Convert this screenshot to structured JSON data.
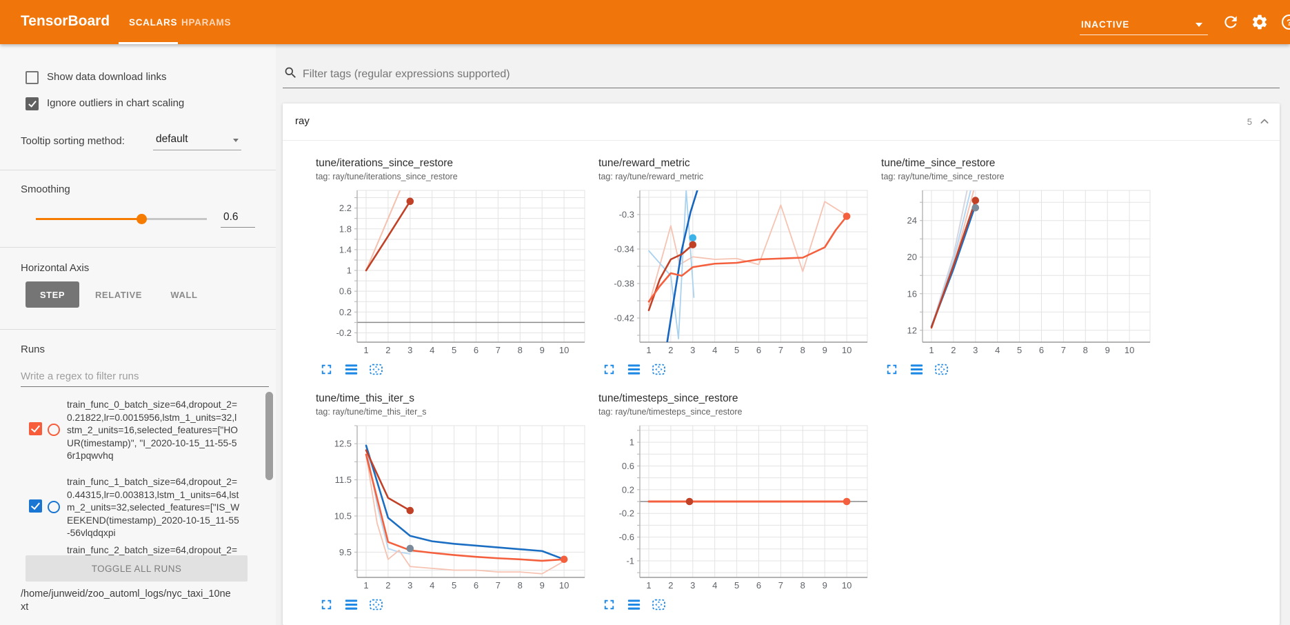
{
  "topbar": {
    "logo": "TensorBoard",
    "tabs": [
      {
        "label": "SCALARS",
        "active": true
      },
      {
        "label": "HPARAMS",
        "active": false
      }
    ],
    "status": "INACTIVE",
    "accent_color": "#f0750a"
  },
  "sidebar": {
    "checkboxes": [
      {
        "label": "Show data download links",
        "checked": false
      },
      {
        "label": "Ignore outliers in chart scaling",
        "checked": true
      }
    ],
    "tooltip_sorting": {
      "label": "Tooltip sorting method:",
      "value": "default"
    },
    "smoothing": {
      "label": "Smoothing",
      "value": "0.6"
    },
    "horizontal_axis": {
      "label": "Horizontal Axis",
      "options": [
        "STEP",
        "RELATIVE",
        "WALL"
      ],
      "selected": "STEP"
    },
    "runs": {
      "label": "Runs",
      "filter_placeholder": "Write a regex to filter runs",
      "items": [
        {
          "label": "train_func_0_batch_size=64,dropout_2=0.21822,lr=0.0015956,lstm_1_units=32,lstm_2_units=16,selected_features=[\"HOUR(timestamp)\", \"I_2020-10-15_11-55-56r1pqwvhq",
          "color": "#f75d3b",
          "checked": true
        },
        {
          "label": "train_func_1_batch_size=64,dropout_2=0.44315,lr=0.003813,lstm_1_units=64,lstm_2_units=32,selected_features=[\"IS_WEEKEND(timestamp)_2020-10-15_11-55-56vlqdqxpi",
          "color": "#1976d2",
          "checked": true
        },
        {
          "label": "train_func_2_batch_size=64,dropout_2="
        }
      ],
      "toggle_all_label": "TOGGLE ALL RUNS",
      "log_dir": "/home/junweid/zoo_automl_logs/nyc_taxi_10next"
    }
  },
  "main": {
    "filter_placeholder": "Filter tags (regular expressions supported)",
    "card": {
      "title": "ray",
      "count": "5"
    }
  },
  "chart_data": [
    {
      "type": "line",
      "title": "tune/iterations_since_restore",
      "tag": "tag: ray/tune/iterations_since_restore",
      "xlabel": "step",
      "xticks": [
        1,
        2,
        3,
        4,
        5,
        6,
        7,
        8,
        9,
        10
      ],
      "ylim": [
        -0.38,
        2.54
      ],
      "yticks": [
        2.2,
        1.8,
        1.4,
        1.0,
        0.6,
        0.2,
        -0.2
      ],
      "ytick_labels": [
        "2.2",
        "1.8",
        "1.4",
        "1",
        "0.6",
        "0.2",
        "-0.2"
      ],
      "zero_line": true,
      "series": [
        {
          "name": "train_func_0 raw",
          "color": "#f6c0ae",
          "width": 2,
          "points": [
            [
              1,
              1
            ],
            [
              2.6,
              2.6
            ]
          ]
        },
        {
          "name": "train_func_0 smoothed",
          "color": "#c14127",
          "width": 2.6,
          "points": [
            [
              1,
              1
            ],
            [
              2,
              1.66
            ],
            [
              3,
              2.33
            ]
          ]
        }
      ],
      "dots": [
        {
          "x": 3,
          "y": 2.33,
          "color": "#c14127"
        }
      ]
    },
    {
      "type": "line",
      "title": "tune/reward_metric",
      "tag": "tag: ray/tune/reward_metric",
      "xlabel": "step",
      "xticks": [
        1,
        2,
        3,
        4,
        5,
        6,
        7,
        8,
        9,
        10
      ],
      "ylim": [
        -0.448,
        -0.272
      ],
      "yticks": [
        -0.3,
        -0.34,
        -0.38,
        -0.42
      ],
      "ytick_labels": [
        "-0.3",
        "-0.34",
        "-0.38",
        "-0.42"
      ],
      "zero_line": false,
      "series": [
        {
          "name": "raw pink",
          "color": "#f6c3b2",
          "width": 1.8,
          "points": [
            [
              1,
              -0.405
            ],
            [
              2,
              -0.313
            ],
            [
              2.4,
              -0.358
            ],
            [
              3,
              -0.349
            ],
            [
              4,
              -0.352
            ],
            [
              5,
              -0.351
            ],
            [
              6,
              -0.358
            ],
            [
              7,
              -0.289
            ],
            [
              8,
              -0.366
            ],
            [
              9,
              -0.285
            ],
            [
              10,
              -0.301
            ]
          ]
        },
        {
          "name": "raw light blue",
          "color": "#a9d2ef",
          "width": 1.8,
          "points": [
            [
              1,
              -0.342
            ],
            [
              2,
              -0.371
            ],
            [
              2.35,
              -0.444
            ],
            [
              2.7,
              -0.272
            ],
            [
              3.05,
              -0.396
            ]
          ]
        },
        {
          "name": "smoothed blue",
          "color": "#1565c0",
          "width": 2.6,
          "points": [
            [
              1.75,
              -0.462
            ],
            [
              2.1,
              -0.405
            ],
            [
              2.5,
              -0.341
            ],
            [
              2.9,
              -0.297
            ],
            [
              3.4,
              -0.256
            ]
          ]
        },
        {
          "name": "smoothed dark red",
          "color": "#c14127",
          "width": 2.6,
          "points": [
            [
              1,
              -0.411
            ],
            [
              1.5,
              -0.375
            ],
            [
              2,
              -0.352
            ],
            [
              2.5,
              -0.346
            ],
            [
              3,
              -0.335
            ]
          ]
        },
        {
          "name": "smoothed orange",
          "color": "#f4603d",
          "width": 2.6,
          "points": [
            [
              1,
              -0.401
            ],
            [
              1.5,
              -0.383
            ],
            [
              2,
              -0.368
            ],
            [
              2.5,
              -0.371
            ],
            [
              3,
              -0.361
            ],
            [
              4,
              -0.357
            ],
            [
              5,
              -0.356
            ],
            [
              6,
              -0.352
            ],
            [
              7,
              -0.351
            ],
            [
              8,
              -0.35
            ],
            [
              9,
              -0.338
            ],
            [
              9.5,
              -0.318
            ],
            [
              10,
              -0.302
            ]
          ]
        }
      ],
      "dots": [
        {
          "x": 3,
          "y": -0.327,
          "color": "#3bb3e8"
        },
        {
          "x": 3,
          "y": -0.335,
          "color": "#c14127"
        },
        {
          "x": 10,
          "y": -0.302,
          "color": "#f4603d"
        }
      ]
    },
    {
      "type": "line",
      "title": "tune/time_since_restore",
      "tag": "tag: ray/tune/time_since_restore",
      "xlabel": "step",
      "xticks": [
        1,
        2,
        3,
        4,
        5,
        6,
        7,
        8,
        9,
        10
      ],
      "ylim": [
        10.7,
        27.3
      ],
      "yticks": [
        24,
        20,
        16,
        12
      ],
      "ytick_labels": [
        "24",
        "20",
        "16",
        "12"
      ],
      "zero_line": false,
      "series": [
        {
          "name": "raw gray",
          "color": "#d6d6e0",
          "width": 2,
          "points": [
            [
              1,
              12.35
            ],
            [
              2,
              20.2
            ],
            [
              2.62,
              27.3
            ]
          ]
        },
        {
          "name": "raw light blue",
          "color": "#b5d7f2",
          "width": 2,
          "points": [
            [
              1,
              12.4
            ],
            [
              2,
              19.6
            ],
            [
              2.78,
              27.3
            ]
          ]
        },
        {
          "name": "raw pink",
          "color": "#f6c3b2",
          "width": 2,
          "points": [
            [
              1,
              12.2
            ],
            [
              2,
              19.0
            ],
            [
              2.92,
              27.3
            ]
          ]
        },
        {
          "name": "smoothed blue",
          "color": "#1b6ec2",
          "width": 2.6,
          "points": [
            [
              1,
              12.4
            ],
            [
              2,
              18.7
            ],
            [
              3,
              25.7
            ]
          ]
        },
        {
          "name": "smoothed dark red",
          "color": "#c14127",
          "width": 2.6,
          "points": [
            [
              1,
              12.3
            ],
            [
              2,
              19.1
            ],
            [
              3,
              26.2
            ]
          ]
        }
      ],
      "dots": [
        {
          "x": 3,
          "y": 25.4,
          "color": "#7b8b9a"
        },
        {
          "x": 3,
          "y": 26.2,
          "color": "#c14127"
        }
      ]
    },
    {
      "type": "line",
      "title": "tune/time_this_iter_s",
      "tag": "tag: ray/tune/time_this_iter_s",
      "xlabel": "step",
      "xticks": [
        1,
        2,
        3,
        4,
        5,
        6,
        7,
        8,
        9,
        10
      ],
      "ylim": [
        8.8,
        13.0
      ],
      "yticks": [
        12.5,
        11.5,
        10.5,
        9.5
      ],
      "ytick_labels": [
        "12.5",
        "11.5",
        "10.5",
        "9.5"
      ],
      "zero_line": false,
      "series": [
        {
          "name": "raw light blue",
          "color": "#b5d7f2",
          "width": 1.8,
          "points": [
            [
              1,
              12.45
            ],
            [
              1.5,
              10.8
            ],
            [
              2,
              9.6
            ],
            [
              2.5,
              9.5
            ],
            [
              3,
              9.45
            ]
          ]
        },
        {
          "name": "raw pink",
          "color": "#f6c3b2",
          "width": 1.8,
          "points": [
            [
              1,
              12.2
            ],
            [
              1.5,
              10.3
            ],
            [
              2,
              9.3
            ],
            [
              2.5,
              9.55
            ],
            [
              3,
              9.1
            ],
            [
              4,
              9.05
            ],
            [
              5,
              9.0
            ],
            [
              6,
              9.0
            ],
            [
              7,
              8.95
            ],
            [
              8,
              8.95
            ],
            [
              9,
              8.9
            ],
            [
              10,
              9.25
            ]
          ]
        },
        {
          "name": "smoothed blue",
          "color": "#1b6ec2",
          "width": 2.6,
          "points": [
            [
              1,
              12.45
            ],
            [
              2,
              10.45
            ],
            [
              3,
              9.95
            ],
            [
              4,
              9.8
            ],
            [
              5,
              9.73
            ],
            [
              6,
              9.68
            ],
            [
              7,
              9.63
            ],
            [
              8,
              9.58
            ],
            [
              9,
              9.53
            ],
            [
              10,
              9.3
            ]
          ]
        },
        {
          "name": "smoothed orange",
          "color": "#f4603d",
          "width": 2.6,
          "points": [
            [
              1,
              12.2
            ],
            [
              2,
              9.78
            ],
            [
              3,
              9.55
            ],
            [
              4,
              9.48
            ],
            [
              5,
              9.42
            ],
            [
              6,
              9.37
            ],
            [
              7,
              9.33
            ],
            [
              8,
              9.3
            ],
            [
              9,
              9.26
            ],
            [
              10,
              9.3
            ]
          ]
        },
        {
          "name": "smoothed dark red",
          "color": "#c14127",
          "width": 2.6,
          "points": [
            [
              1,
              12.32
            ],
            [
              2,
              11.0
            ],
            [
              3,
              10.65
            ]
          ]
        }
      ],
      "dots": [
        {
          "x": 3,
          "y": 9.6,
          "color": "#7b8b9a"
        },
        {
          "x": 3,
          "y": 10.65,
          "color": "#c14127"
        },
        {
          "x": 10,
          "y": 9.3,
          "color": "#f4603d"
        }
      ]
    },
    {
      "type": "line",
      "title": "tune/timesteps_since_restore",
      "tag": "tag: ray/tune/timesteps_since_restore",
      "xlabel": "step",
      "xticks": [
        1,
        2,
        3,
        4,
        5,
        6,
        7,
        8,
        9,
        10
      ],
      "ylim": [
        -1.28,
        1.28
      ],
      "yticks": [
        1,
        0.6,
        0.2,
        -0.2,
        -0.6,
        -1
      ],
      "ytick_labels": [
        "1",
        "0.6",
        "0.2",
        "-0.2",
        "-0.6",
        "-1"
      ],
      "zero_line": true,
      "series": [
        {
          "name": "smoothed orange",
          "color": "#f4603d",
          "width": 3,
          "points": [
            [
              1,
              0
            ],
            [
              10,
              0
            ]
          ]
        }
      ],
      "dots": [
        {
          "x": 2.85,
          "y": 0,
          "color": "#c14127"
        },
        {
          "x": 10,
          "y": 0,
          "color": "#f4603d"
        }
      ]
    }
  ]
}
